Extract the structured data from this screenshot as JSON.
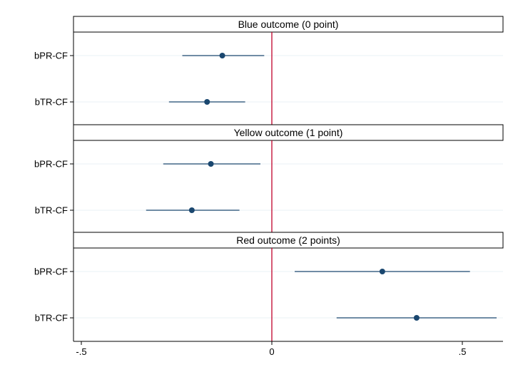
{
  "chart_data": {
    "type": "scatter",
    "subtype": "coefficient-plot",
    "xlim": [
      -0.5,
      0.6
    ],
    "xticks": [
      {
        "value": -0.5,
        "label": "-.5"
      },
      {
        "value": 0,
        "label": "0"
      },
      {
        "value": 0.5,
        "label": ".5"
      }
    ],
    "reference_line": {
      "x": 0,
      "color": "#c0002a"
    },
    "colors": {
      "marker": "#1a476f",
      "ci": "#1a476f",
      "frame": "#000000",
      "grid": "#eaf0f4",
      "background": "#ffffff"
    },
    "grid": true,
    "panels": [
      {
        "title": "Blue outcome (0 point)",
        "rows": [
          {
            "label": "bPR-CF",
            "estimate": -0.13,
            "ci_low": -0.235,
            "ci_high": -0.02
          },
          {
            "label": "bTR-CF",
            "estimate": -0.17,
            "ci_low": -0.27,
            "ci_high": -0.07
          }
        ]
      },
      {
        "title": "Yellow outcome (1 point)",
        "rows": [
          {
            "label": "bPR-CF",
            "estimate": -0.16,
            "ci_low": -0.285,
            "ci_high": -0.03
          },
          {
            "label": "bTR-CF",
            "estimate": -0.21,
            "ci_low": -0.33,
            "ci_high": -0.085
          }
        ]
      },
      {
        "title": "Red outcome (2 points)",
        "rows": [
          {
            "label": "bPR-CF",
            "estimate": 0.29,
            "ci_low": 0.06,
            "ci_high": 0.52
          },
          {
            "label": "bTR-CF",
            "estimate": 0.38,
            "ci_low": 0.17,
            "ci_high": 0.59
          }
        ]
      }
    ]
  }
}
